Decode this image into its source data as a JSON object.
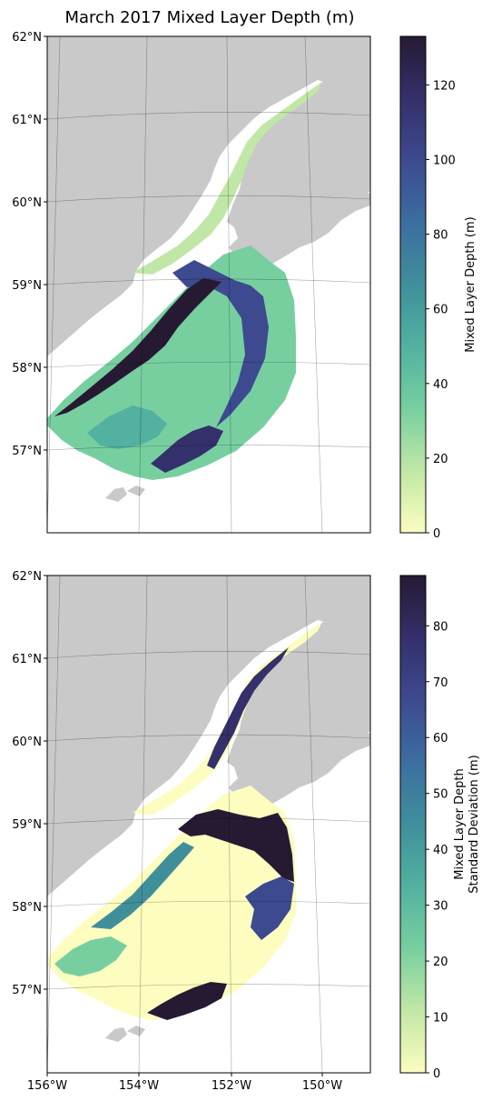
{
  "title": "March 2017 Mixed Layer Depth (m)",
  "panels": [
    {
      "name": "mld",
      "lat_labels": [
        "62°N",
        "61°N",
        "60°N",
        "59°N",
        "58°N",
        "57°N"
      ],
      "lon_labels": [],
      "colorbar": {
        "label_lines": [
          "Mixed Layer Depth (m)"
        ],
        "min": 0,
        "max": 133,
        "ticks": [
          0,
          20,
          40,
          60,
          80,
          100,
          120
        ]
      }
    },
    {
      "name": "std",
      "lat_labels": [
        "62°N",
        "61°N",
        "60°N",
        "59°N",
        "58°N",
        "57°N"
      ],
      "lon_labels": [
        "156°W",
        "154°W",
        "152°W",
        "150°W"
      ],
      "colorbar": {
        "label_lines": [
          "Mixed Layer Depth",
          "Standard Deviation (m)"
        ],
        "min": 0,
        "max": 89,
        "ticks": [
          0,
          10,
          20,
          30,
          40,
          50,
          60,
          70,
          80
        ]
      }
    }
  ],
  "colors": {
    "land": "#c9c9c9",
    "cmap": [
      "#fcfdbf",
      "#c1e7a6",
      "#77cfa0",
      "#52b1a0",
      "#3f8f9b",
      "#3c6ea0",
      "#3d4a8f",
      "#34306b",
      "#261a33"
    ]
  }
}
